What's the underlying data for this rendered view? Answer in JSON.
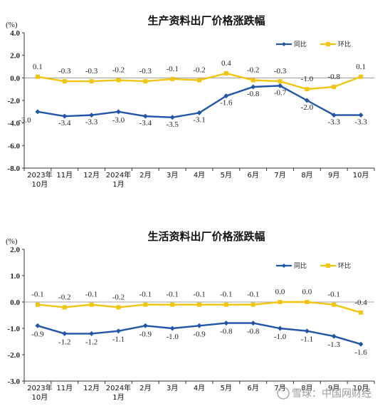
{
  "watermark": "雪球：中国网财经",
  "colors": {
    "yoy": "#1f56a8",
    "mom": "#f2c50c",
    "axis": "#333333",
    "grid": "#cfcfcf"
  },
  "legend_icon": {
    "yoy": "diamond-marker",
    "mom": "square-marker"
  },
  "chart_data": [
    {
      "type": "line",
      "title": "生产资料出厂价格涨跌幅",
      "ylabel": "(%)",
      "yticks": [
        "4.0",
        "2.0",
        "0.0",
        "-2.0",
        "-4.0",
        "-6.0",
        "-8.0"
      ],
      "ylim": [
        -8,
        4
      ],
      "categories": [
        [
          "2023年",
          "10月"
        ],
        [
          "11月"
        ],
        [
          "12月"
        ],
        [
          "2024年",
          "1月"
        ],
        [
          "2月"
        ],
        [
          "3月"
        ],
        [
          "4月"
        ],
        [
          "5月"
        ],
        [
          "6月"
        ],
        [
          "7月"
        ],
        [
          "8月"
        ],
        [
          "9月"
        ],
        [
          "10月"
        ]
      ],
      "series": [
        {
          "name": "同比",
          "key": "yoy",
          "values": [
            -3.0,
            -3.4,
            -3.3,
            -3.0,
            -3.4,
            -3.5,
            -3.1,
            -1.6,
            -0.8,
            -0.7,
            -2.0,
            -3.3,
            -3.3
          ],
          "labels": [
            "-3.0",
            "-3.4",
            "-3.3",
            "-3.0",
            "-3.4",
            "-3.5",
            "-3.1",
            "-1.6",
            "-0.8",
            "-0.7",
            "-2.0",
            "-3.3",
            "-3.3"
          ]
        },
        {
          "name": "环比",
          "key": "mom",
          "values": [
            0.1,
            -0.3,
            -0.3,
            -0.2,
            -0.3,
            -0.1,
            -0.2,
            0.4,
            -0.2,
            -0.3,
            -1.0,
            -0.8,
            0.1
          ],
          "labels": [
            "0.1",
            "-0.3",
            "-0.3",
            "-0.2",
            "-0.3",
            "-0.1",
            "-0.2",
            "0.4",
            "-0.2",
            "-0.3",
            "-1.0",
            "-0.8",
            "0.1"
          ]
        }
      ],
      "grid": false,
      "legend_position": "top-right"
    },
    {
      "type": "line",
      "title": "生活资料出厂价格涨跌幅",
      "ylabel": "(%)",
      "yticks": [
        "2.0",
        "1.0",
        "0.0",
        "-1.0",
        "-2.0",
        "-3.0"
      ],
      "ylim": [
        -3,
        2
      ],
      "categories": [
        [
          "2023年",
          "10月"
        ],
        [
          "11月"
        ],
        [
          "12月"
        ],
        [
          "2024年",
          "1月"
        ],
        [
          "2月"
        ],
        [
          "3月"
        ],
        [
          "4月"
        ],
        [
          "5月"
        ],
        [
          "6月"
        ],
        [
          "7月"
        ],
        [
          "8月"
        ],
        [
          "9月"
        ],
        [
          "10月"
        ]
      ],
      "series": [
        {
          "name": "同比",
          "key": "yoy",
          "values": [
            -0.9,
            -1.2,
            -1.2,
            -1.1,
            -0.9,
            -1.0,
            -0.9,
            -0.8,
            -0.8,
            -1.0,
            -1.1,
            -1.3,
            -1.6
          ],
          "labels": [
            "-0.9",
            "-1.2",
            "-1.2",
            "-1.1",
            "-0.9",
            "-1.0",
            "-0.9",
            "-0.8",
            "-0.8",
            "-1.0",
            "-1.1",
            "-1.3",
            "-1.6"
          ]
        },
        {
          "name": "环比",
          "key": "mom",
          "values": [
            -0.1,
            -0.2,
            -0.1,
            -0.2,
            -0.1,
            -0.1,
            -0.1,
            -0.1,
            -0.1,
            0.0,
            0.0,
            -0.1,
            -0.4
          ],
          "labels": [
            "-0.1",
            "-0.2",
            "-0.1",
            "-0.2",
            "-0.1",
            "-0.1",
            "-0.1",
            "-0.1",
            "-0.1",
            "0.0",
            "0.0",
            "-0.1",
            "-0.4"
          ]
        }
      ],
      "grid": false,
      "legend_position": "top-right"
    }
  ]
}
